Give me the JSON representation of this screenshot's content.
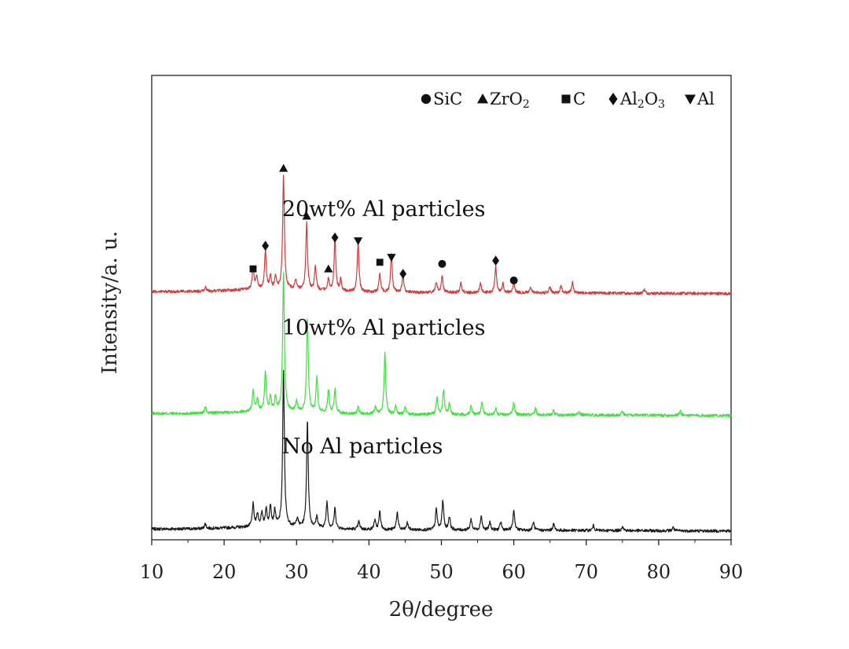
{
  "chart_data": {
    "type": "line",
    "title": "",
    "xlabel": "2θ/degree",
    "ylabel": "Intensity/a. u.",
    "xlim": [
      10,
      90
    ],
    "xticks": [
      10,
      20,
      30,
      40,
      50,
      60,
      70,
      80,
      90
    ],
    "ylim": [
      0,
      100
    ],
    "grid": false,
    "legend_position": "top-right",
    "legend": [
      {
        "marker": "circle",
        "label": "SiC"
      },
      {
        "marker": "triangle-up",
        "label": "ZrO",
        "sub": "2"
      },
      {
        "marker": "square",
        "label": "C"
      },
      {
        "marker": "diamond",
        "label": "Al",
        "sub": "2",
        "label2": "O",
        "sub2": "3"
      },
      {
        "marker": "triangle-down",
        "label": "Al"
      }
    ],
    "series": [
      {
        "name": "No Al particles",
        "color": "#1a1a1a",
        "baseline": 3,
        "noise": 0.45,
        "seed": 7,
        "peaks": [
          [
            17.4,
            1.5
          ],
          [
            24.0,
            6.8
          ],
          [
            24.6,
            3.9
          ],
          [
            25.2,
            4.1
          ],
          [
            25.8,
            5.2
          ],
          [
            26.4,
            6.2
          ],
          [
            27.0,
            4.6
          ],
          [
            28.2,
            47.0
          ],
          [
            30.1,
            2.6
          ],
          [
            31.5,
            32.0
          ],
          [
            32.8,
            3.3
          ],
          [
            34.2,
            7.9
          ],
          [
            35.3,
            6.1
          ],
          [
            38.6,
            2.4
          ],
          [
            40.8,
            2.8
          ],
          [
            41.5,
            5.4
          ],
          [
            43.9,
            5.3
          ],
          [
            45.3,
            2.1
          ],
          [
            49.3,
            6.3
          ],
          [
            50.2,
            9.0
          ],
          [
            51.1,
            4.0
          ],
          [
            54.1,
            3.3
          ],
          [
            55.5,
            4.3
          ],
          [
            56.7,
            2.4
          ],
          [
            58.2,
            2.4
          ],
          [
            60.0,
            6.1
          ],
          [
            62.7,
            2.4
          ],
          [
            65.5,
            1.9
          ],
          [
            71.0,
            1.5
          ],
          [
            75.0,
            1.4
          ],
          [
            82.0,
            1.0
          ]
        ]
      },
      {
        "name": "10wt% Al particles",
        "color": "#3fe03f",
        "baseline": 38,
        "noise": 0.45,
        "seed": 13,
        "peaks": [
          [
            17.4,
            1.8
          ],
          [
            24.0,
            6.1
          ],
          [
            24.6,
            3.6
          ],
          [
            25.7,
            11.9
          ],
          [
            26.4,
            4.1
          ],
          [
            27.1,
            4.1
          ],
          [
            28.2,
            42.3
          ],
          [
            30.0,
            3.0
          ],
          [
            31.5,
            28.1
          ],
          [
            32.8,
            10.6
          ],
          [
            34.4,
            6.8
          ],
          [
            35.3,
            7.3
          ],
          [
            38.5,
            2.2
          ],
          [
            40.9,
            2.3
          ],
          [
            42.2,
            18.5
          ],
          [
            43.7,
            2.6
          ],
          [
            45.0,
            2.0
          ],
          [
            49.4,
            5.2
          ],
          [
            50.3,
            7.5
          ],
          [
            51.1,
            3.2
          ],
          [
            54.1,
            2.8
          ],
          [
            55.6,
            3.8
          ],
          [
            57.5,
            2.0
          ],
          [
            60.0,
            3.8
          ],
          [
            63.0,
            2.0
          ],
          [
            65.5,
            1.5
          ],
          [
            69.0,
            1.2
          ],
          [
            75.0,
            1.1
          ],
          [
            83.0,
            1.4
          ]
        ]
      },
      {
        "name": "20wt% Al particles",
        "color": "#d23c3c",
        "baseline": 75,
        "noise": 0.45,
        "seed": 29,
        "peaks": [
          [
            17.4,
            1.2
          ],
          [
            24.0,
            6.3
          ],
          [
            24.5,
            3.9
          ],
          [
            25.7,
            11.5
          ],
          [
            26.4,
            3.8
          ],
          [
            27.1,
            3.5
          ],
          [
            28.2,
            34.6
          ],
          [
            29.9,
            2.7
          ],
          [
            31.4,
            20.1
          ],
          [
            32.6,
            7.1
          ],
          [
            34.4,
            3.6
          ],
          [
            35.3,
            15.7
          ],
          [
            36.1,
            3.5
          ],
          [
            38.5,
            15.2
          ],
          [
            41.5,
            5.6
          ],
          [
            43.1,
            11.4
          ],
          [
            44.7,
            5.2
          ],
          [
            49.3,
            3.2
          ],
          [
            50.1,
            5.0
          ],
          [
            52.7,
            3.0
          ],
          [
            55.4,
            2.8
          ],
          [
            57.5,
            8.0
          ],
          [
            58.5,
            2.8
          ],
          [
            60.0,
            3.3
          ],
          [
            62.3,
            1.8
          ],
          [
            65.0,
            1.8
          ],
          [
            66.5,
            2.3
          ],
          [
            68.1,
            3.2
          ],
          [
            78.0,
            1.2
          ]
        ]
      }
    ],
    "series_labels": [
      {
        "text": "20wt% Al particles",
        "x": 28.0,
        "y": 98.5
      },
      {
        "text": "10wt% Al particles",
        "x": 28.0,
        "y": 62.5
      },
      {
        "text": "No Al particles",
        "x": 28.0,
        "y": 26.5
      }
    ],
    "annotations": [
      {
        "marker": "triangle-up",
        "x": 28.2,
        "y": 113.0
      },
      {
        "marker": "triangle-up",
        "x": 31.4,
        "y": 98.5
      },
      {
        "marker": "diamond",
        "x": 25.7,
        "y": 89.5
      },
      {
        "marker": "diamond",
        "x": 35.3,
        "y": 92.0
      },
      {
        "marker": "triangle-down",
        "x": 38.5,
        "y": 91.0
      },
      {
        "marker": "triangle-down",
        "x": 43.1,
        "y": 86.0
      },
      {
        "marker": "square",
        "x": 24.0,
        "y": 82.5
      },
      {
        "marker": "triangle-up",
        "x": 34.4,
        "y": 82.5
      },
      {
        "marker": "square",
        "x": 41.5,
        "y": 84.5
      },
      {
        "marker": "diamond",
        "x": 44.7,
        "y": 81.0
      },
      {
        "marker": "circle",
        "x": 50.1,
        "y": 84.0
      },
      {
        "marker": "diamond",
        "x": 57.5,
        "y": 85.0
      },
      {
        "marker": "circle",
        "x": 60.0,
        "y": 79.0
      }
    ]
  }
}
